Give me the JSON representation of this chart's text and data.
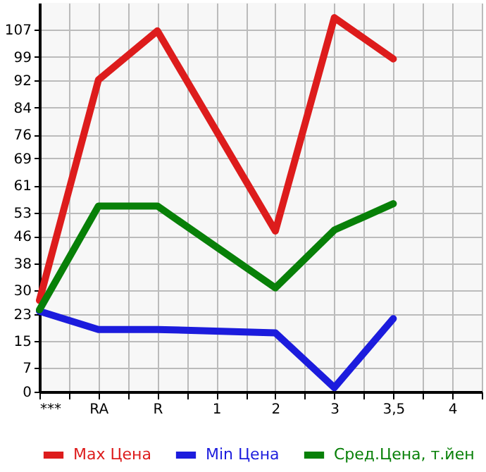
{
  "chart_data": {
    "type": "line",
    "categories": [
      "***",
      "RA",
      "R",
      "1",
      "2",
      "3",
      "3,5",
      "4"
    ],
    "series": [
      {
        "name": "Max Цена",
        "color": "#dd1c1c",
        "values": [
          27,
          92.2,
          106.7,
          null,
          47.5,
          110.6,
          98.4,
          null
        ]
      },
      {
        "name": "Min Цена",
        "color": "#1c1cdd",
        "values": [
          23.8,
          18.4,
          18.4,
          null,
          17.4,
          1.2,
          21.6,
          null
        ]
      },
      {
        "name": "Сред.Цена, т.йен",
        "color": "#088008",
        "values": [
          24.2,
          54.9,
          54.9,
          null,
          30.7,
          47.8,
          55.6,
          null
        ]
      }
    ],
    "ylim": [
      0,
      115
    ],
    "yticks": [
      0,
      7,
      15,
      23,
      30,
      38,
      46,
      53,
      61,
      69,
      76,
      84,
      92,
      99,
      107
    ],
    "grid": true,
    "legend": "bottom",
    "marker": "none",
    "line_style": "solid"
  }
}
